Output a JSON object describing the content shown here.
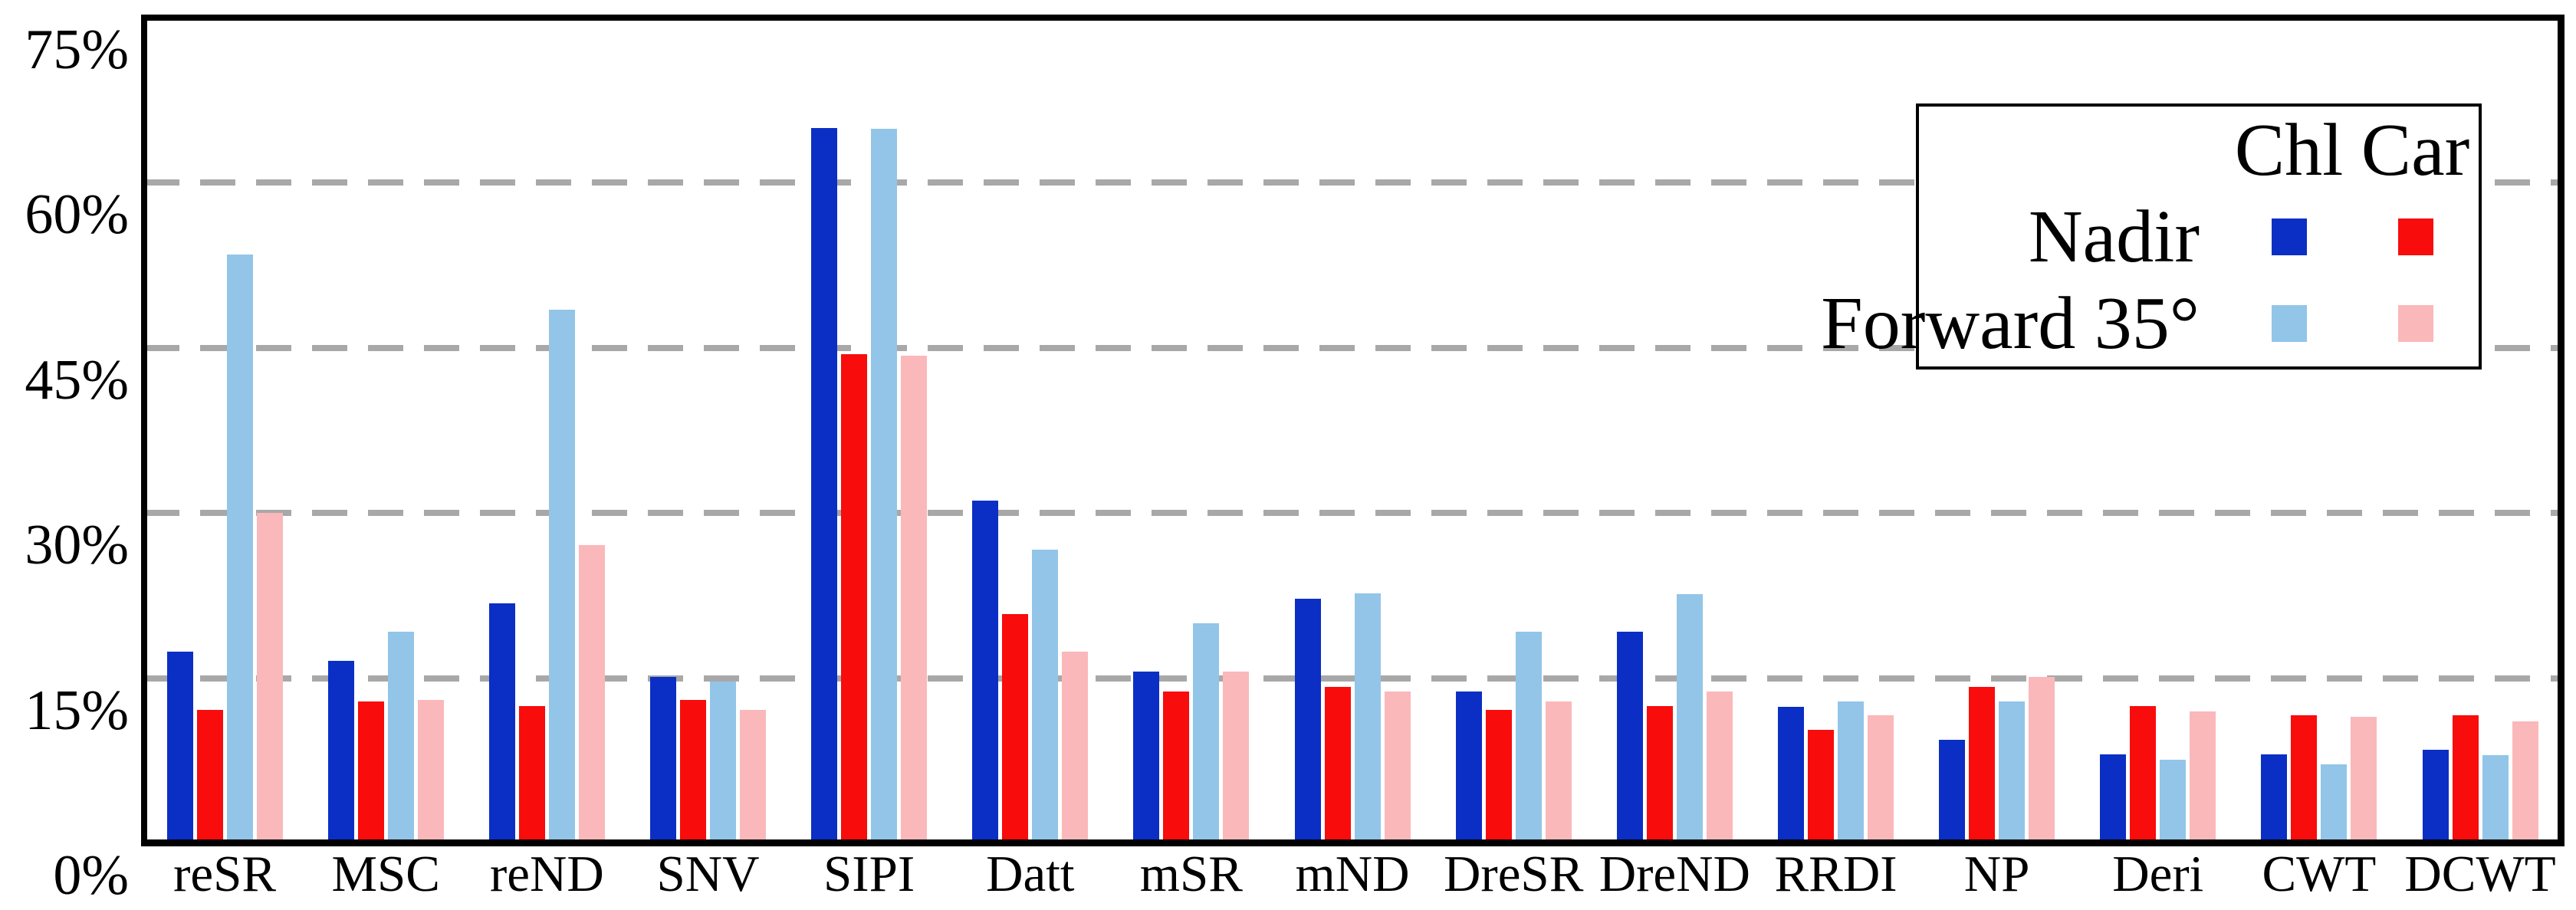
{
  "chart_data": {
    "type": "bar",
    "title": "",
    "categories": [
      "reSR",
      "MSC",
      "reND",
      "SNV",
      "SIPI",
      "Datt",
      "mSR",
      "mND",
      "DreSR",
      "DreND",
      "RRDI",
      "NP",
      "Deri",
      "CWT",
      "DCWT"
    ],
    "series": [
      {
        "name": "Nadir Chl",
        "view": "Nadir",
        "pigment": "Chl",
        "color": "#0b2fc4",
        "values": [
          17.4,
          16.6,
          21.8,
          15.1,
          65.0,
          31.1,
          15.6,
          22.2,
          13.8,
          19.2,
          12.4,
          9.4,
          8.1,
          8.1,
          8.5
        ]
      },
      {
        "name": "Nadir Car",
        "view": "Nadir",
        "pigment": "Car",
        "color": "#f80c0c",
        "values": [
          12.1,
          12.9,
          12.5,
          13.0,
          44.4,
          20.8,
          13.8,
          14.2,
          12.1,
          12.5,
          10.3,
          14.2,
          12.5,
          11.6,
          11.6
        ]
      },
      {
        "name": "Forward 35° Chl",
        "view": "Forward 35°",
        "pigment": "Chl",
        "color": "#92c5e8",
        "values": [
          53.5,
          19.2,
          48.5,
          14.7,
          64.9,
          26.7,
          20.0,
          22.7,
          19.2,
          22.6,
          12.9,
          12.9,
          7.6,
          7.2,
          8.0
        ]
      },
      {
        "name": "Forward 35° Car",
        "view": "Forward 35°",
        "pigment": "Car",
        "color": "#fab8bb",
        "values": [
          30.0,
          13.0,
          27.1,
          12.1,
          44.3,
          17.4,
          15.6,
          13.8,
          12.9,
          13.8,
          11.6,
          15.1,
          12.0,
          11.5,
          11.1
        ]
      }
    ],
    "y_axis": {
      "ticks": [
        {
          "label": "0%",
          "value": 0
        },
        {
          "label": "15%",
          "value": 15
        },
        {
          "label": "30%",
          "value": 30
        },
        {
          "label": "45%",
          "value": 45
        },
        {
          "label": "60%",
          "value": 60
        },
        {
          "label": "75%",
          "value": 75
        }
      ],
      "max": 75,
      "gridlines": "dashed gray horizontal at 15% steps"
    },
    "legend": {
      "position": "top-right",
      "col_headers": [
        "Chl",
        "Car"
      ],
      "rows": [
        {
          "label": "Nadir",
          "swatches": [
            "#0b2fc4",
            "#f80c0c"
          ]
        },
        {
          "label": "Forward 35°",
          "swatches": [
            "#92c5e8",
            "#fab8bb"
          ]
        }
      ]
    },
    "colors": {
      "nadir_chl": "#0b2fc4",
      "nadir_car": "#f80c0c",
      "forward_chl": "#92c5e8",
      "forward_car": "#fab8bb",
      "gridline": "#a8a8a8",
      "frame": "#000000",
      "background": "#ffffff"
    }
  }
}
